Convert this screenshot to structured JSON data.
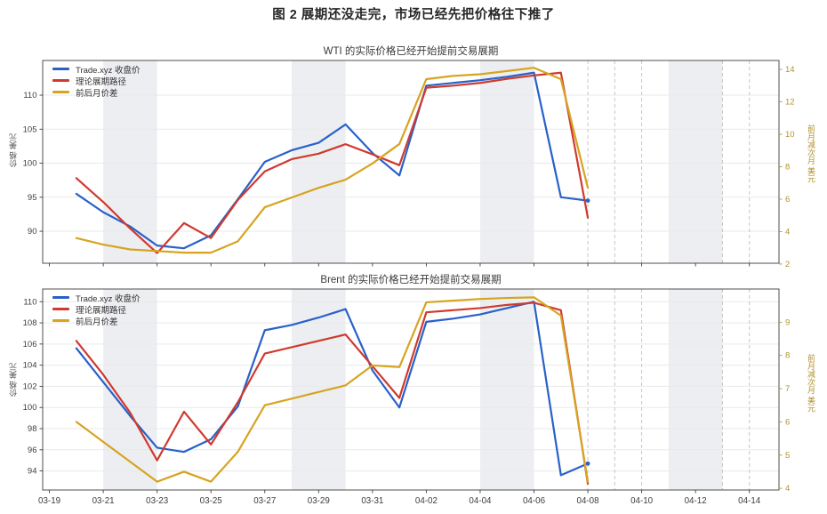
{
  "figure_title": "图 2  展期还没走完，市场已经先把价格往下推了",
  "legend": {
    "items": [
      {
        "label": "Trade.xyz 收盘价",
        "color": "#2861c9"
      },
      {
        "label": "理论展期路径",
        "color": "#cf3a2e"
      },
      {
        "label": "前后月价差",
        "color": "#d6a421"
      }
    ]
  },
  "colors": {
    "band": "#edeef1",
    "grid": "#e9e9ea",
    "frame": "#4f4f4f",
    "dashed_future": "#c6c6c6",
    "tick_text": "#3d3d3d",
    "right_axis_text": "#b3922e"
  },
  "x_axis": {
    "domain_days": [
      -0.25,
      27.1
    ],
    "tick_days": [
      0,
      2,
      4,
      6,
      8,
      10,
      12,
      14,
      16,
      18,
      20,
      22,
      24,
      26
    ],
    "tick_labels": [
      "03-19",
      "03-21",
      "03-23",
      "03-25",
      "03-27",
      "03-29",
      "03-31",
      "04-02",
      "04-04",
      "04-06",
      "04-08",
      "04-10",
      "04-12",
      "04-14"
    ],
    "weekend_band_days": [
      [
        2,
        4
      ],
      [
        9,
        11
      ],
      [
        16,
        18
      ],
      [
        23,
        25
      ]
    ],
    "future_dashed_days": [
      20,
      21,
      22,
      25,
      26
    ]
  },
  "chart_data": [
    {
      "type": "line",
      "title": "WTI 的实际价格已经开始提前交易展期",
      "ylabel_left": "价格 美元",
      "ylabel_right": "前月减次月 美元",
      "left_ticks": [
        90,
        95,
        100,
        105,
        110
      ],
      "left_range": [
        85.3,
        115.1
      ],
      "right_ticks": [
        2,
        4,
        6,
        8,
        10,
        12,
        14
      ],
      "right_range": [
        2.05,
        14.55
      ],
      "x_dates": [
        "03-20",
        "03-21",
        "03-22",
        "03-23",
        "03-24",
        "03-25",
        "03-26",
        "03-27",
        "03-28",
        "03-29",
        "03-30",
        "03-31",
        "04-01",
        "04-02",
        "04-03",
        "04-04",
        "04-05",
        "04-06",
        "04-07",
        "04-08"
      ],
      "x_days": [
        1,
        2,
        3,
        4,
        5,
        6,
        7,
        8,
        9,
        10,
        11,
        12,
        13,
        14,
        15,
        16,
        17,
        18,
        19,
        20
      ],
      "series": [
        {
          "name": "Trade.xyz 收盘价",
          "axis": "left",
          "color": "#2861c9",
          "end_marker": true,
          "values": [
            95.5,
            92.8,
            90.7,
            87.9,
            87.5,
            89.4,
            94.7,
            100.2,
            101.9,
            103.0,
            105.7,
            101.5,
            98.2,
            111.4,
            111.8,
            112.2,
            112.7,
            113.3,
            95.0,
            94.5
          ]
        },
        {
          "name": "理论展期路径",
          "axis": "left",
          "color": "#cf3a2e",
          "end_marker": false,
          "values": [
            97.8,
            94.3,
            90.4,
            86.8,
            91.2,
            89.0,
            94.6,
            98.8,
            100.6,
            101.4,
            102.8,
            101.3,
            99.7,
            111.1,
            111.4,
            111.8,
            112.4,
            112.9,
            113.3,
            92.0
          ]
        },
        {
          "name": "前后月价差",
          "axis": "right",
          "color": "#d6a421",
          "end_marker": false,
          "values": [
            3.6,
            3.2,
            2.9,
            2.8,
            2.7,
            2.7,
            3.4,
            5.5,
            6.1,
            6.7,
            7.2,
            8.2,
            9.4,
            13.4,
            13.6,
            13.7,
            13.9,
            14.1,
            13.4,
            6.7
          ]
        }
      ]
    },
    {
      "type": "line",
      "title": "Brent 的实际价格已经开始提前交易展期",
      "ylabel_left": "价格 美元",
      "ylabel_right": "前月减次月 美元",
      "left_ticks": [
        94,
        96,
        98,
        100,
        102,
        104,
        106,
        108,
        110
      ],
      "left_range": [
        92.2,
        111.2
      ],
      "right_ticks": [
        4,
        5,
        6,
        7,
        8,
        9
      ],
      "right_range": [
        3.95,
        10.0
      ],
      "x_dates": [
        "03-20",
        "03-21",
        "03-22",
        "03-23",
        "03-24",
        "03-25",
        "03-26",
        "03-27",
        "03-28",
        "03-29",
        "03-30",
        "03-31",
        "04-01",
        "04-02",
        "04-03",
        "04-04",
        "04-05",
        "04-06",
        "04-07",
        "04-08"
      ],
      "x_days": [
        1,
        2,
        3,
        4,
        5,
        6,
        7,
        8,
        9,
        10,
        11,
        12,
        13,
        14,
        15,
        16,
        17,
        18,
        19,
        20
      ],
      "series": [
        {
          "name": "Trade.xyz 收盘价",
          "axis": "left",
          "color": "#2861c9",
          "end_marker": true,
          "values": [
            105.6,
            102.4,
            99.2,
            96.2,
            95.8,
            97.0,
            100.1,
            107.3,
            107.8,
            108.5,
            109.3,
            103.5,
            100.0,
            108.1,
            108.4,
            108.8,
            109.4,
            110.0,
            93.6,
            94.7
          ]
        },
        {
          "name": "理论展期路径",
          "axis": "left",
          "color": "#cf3a2e",
          "end_marker": false,
          "values": [
            106.3,
            103.1,
            99.5,
            95.0,
            99.6,
            96.5,
            100.5,
            105.1,
            105.7,
            106.3,
            106.9,
            103.9,
            100.9,
            109.0,
            109.2,
            109.4,
            109.7,
            109.9,
            109.2,
            92.8
          ]
        },
        {
          "name": "前后月价差",
          "axis": "right",
          "color": "#d6a421",
          "end_marker": false,
          "values": [
            6.0,
            5.4,
            4.8,
            4.2,
            4.5,
            4.2,
            5.1,
            6.5,
            6.7,
            6.9,
            7.1,
            7.7,
            7.65,
            9.6,
            9.65,
            9.7,
            9.73,
            9.75,
            9.2,
            4.2
          ]
        }
      ]
    }
  ]
}
